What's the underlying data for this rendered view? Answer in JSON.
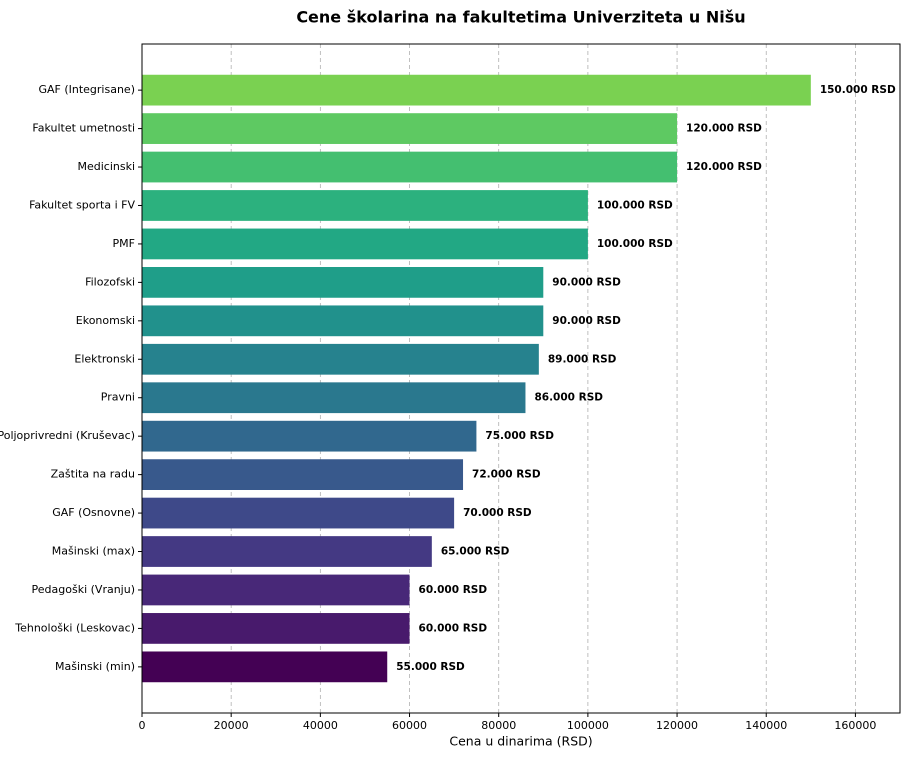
{
  "chart_data": {
    "type": "barh",
    "title": "Cene školarina na fakultetima Univerziteta u Nišu",
    "x_label": "Cena u dinarima (RSD)",
    "categories": [
      "GAF (Integrisane)",
      "Fakultet umetnosti",
      "Medicinski",
      "Fakultet sporta i FV",
      "PMF",
      "Filozofski",
      "Ekonomski",
      "Elektronski",
      "Pravni",
      "Poljoprivredni (Kruševac)",
      "Zaštita na radu",
      "GAF (Osnovne)",
      "Mašinski (max)",
      "Pedagoški (Vranju)",
      "Tehnološki (Leskovac)",
      "Mašinski (min)"
    ],
    "values": [
      150000,
      120000,
      120000,
      100000,
      100000,
      90000,
      90000,
      89000,
      86000,
      75000,
      72000,
      70000,
      65000,
      60000,
      60000,
      55000
    ],
    "value_labels": [
      "150.000 RSD",
      "120.000 RSD",
      "120.000 RSD",
      "100.000 RSD",
      "100.000 RSD",
      "90.000 RSD",
      "90.000 RSD",
      "89.000 RSD",
      "86.000 RSD",
      "75.000 RSD",
      "72.000 RSD",
      "70.000 RSD",
      "65.000 RSD",
      "60.000 RSD",
      "60.000 RSD",
      "55.000 RSD"
    ],
    "colors": [
      "#7ad151",
      "#5ec962",
      "#44bf70",
      "#2cb17e",
      "#22a884",
      "#1f9e89",
      "#21918c",
      "#26828e",
      "#2a788e",
      "#31688e",
      "#38598c",
      "#3e4989",
      "#443983",
      "#482878",
      "#481a6c",
      "#440154"
    ],
    "xlim": [
      0,
      170000
    ],
    "xticks": [
      0,
      20000,
      40000,
      60000,
      80000,
      100000,
      120000,
      140000,
      160000
    ],
    "grid": true
  }
}
